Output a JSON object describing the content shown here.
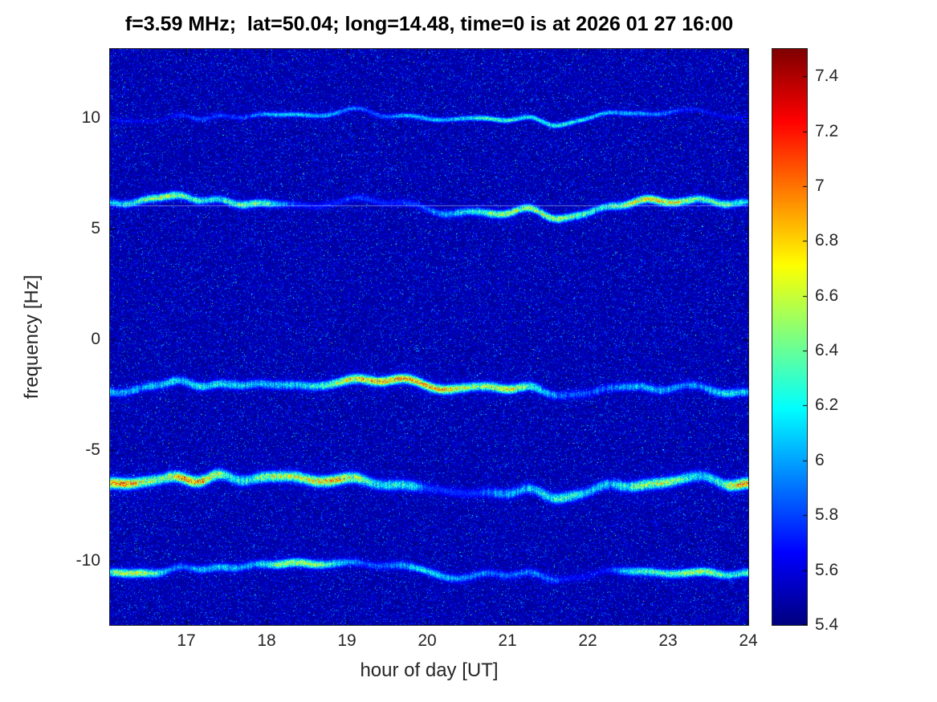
{
  "chart_data": {
    "type": "heatmap",
    "title": "f=3.59 MHz;  lat=50.04; long=14.48, time=0 is at 2026 01 27 16:00",
    "xlabel": "hour of day [UT]",
    "ylabel": "frequency [Hz]",
    "x_range": [
      16.05,
      24
    ],
    "y_range": [
      -12.9,
      13.1
    ],
    "x_ticks": [
      17,
      18,
      19,
      20,
      21,
      22,
      23,
      24
    ],
    "x_tick_labels": [
      "17",
      "18",
      "19",
      "20",
      "21",
      "22",
      "23",
      "24"
    ],
    "y_ticks": [
      -10,
      -5,
      0,
      5,
      10
    ],
    "y_tick_labels": [
      "-10",
      "-5",
      "0",
      "5",
      "10"
    ],
    "colormap": "jet",
    "grid": false,
    "legend": "none",
    "colorbar": {
      "min": 5.4,
      "max": 7.5,
      "ticks": [
        5.4,
        5.6,
        5.8,
        6,
        6.2,
        6.4,
        6.6,
        6.8,
        7,
        7.2,
        7.4
      ],
      "tick_labels": [
        "5.4",
        "5.6",
        "5.8",
        "6",
        "6.2",
        "6.4",
        "6.6",
        "6.8",
        "7",
        "7.2",
        "7.4"
      ],
      "position": "right"
    },
    "background_level": 5.45,
    "noise": {
      "seed": 987654,
      "scale": 0.125,
      "spike_prob": 0.004,
      "spike_max": 0.7
    },
    "shared_wiggle": {
      "seed": 77,
      "components": 18
    },
    "carrier_line": {
      "freq_hz": 6.05,
      "color": "rgba(205,220,250,0.5)"
    },
    "traces": [
      {
        "name": "doppler-trace-plus10",
        "center_hz": 10.05,
        "wiggle_hz": 0.28,
        "sigma_hz": 0.09,
        "peak_level": 6.55,
        "seed": 11
      },
      {
        "name": "doppler-trace-plus6",
        "center_hz": 6.05,
        "wiggle_hz": 0.34,
        "sigma_hz": 0.13,
        "peak_level": 7.15,
        "seed": 22
      },
      {
        "name": "doppler-trace-minus2",
        "center_hz": -2.15,
        "wiggle_hz": 0.32,
        "sigma_hz": 0.15,
        "peak_level": 7.25,
        "seed": 33
      },
      {
        "name": "doppler-trace-minus6p5",
        "center_hz": -6.55,
        "wiggle_hz": 0.36,
        "sigma_hz": 0.18,
        "peak_level": 7.35,
        "seed": 44
      },
      {
        "name": "doppler-trace-minus10p5",
        "center_hz": -10.45,
        "wiggle_hz": 0.3,
        "sigma_hz": 0.14,
        "peak_level": 6.9,
        "seed": 55
      }
    ]
  }
}
